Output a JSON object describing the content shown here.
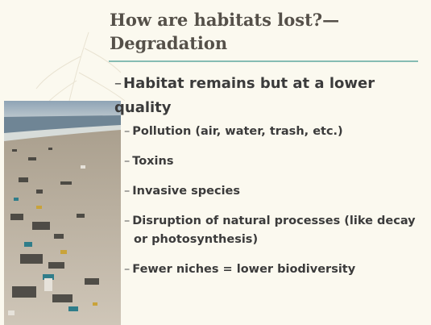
{
  "title": "How are habitats lost?—Degradation",
  "main_bullet": "Habitat remains but at a lower quality",
  "sub_bullets": [
    "Pollution (air, water, trash, etc.)",
    "Toxins",
    "Invasive species",
    "Disruption of natural processes (like decay or photosynthesis)",
    "Fewer niches = lower biodiversity"
  ]
}
